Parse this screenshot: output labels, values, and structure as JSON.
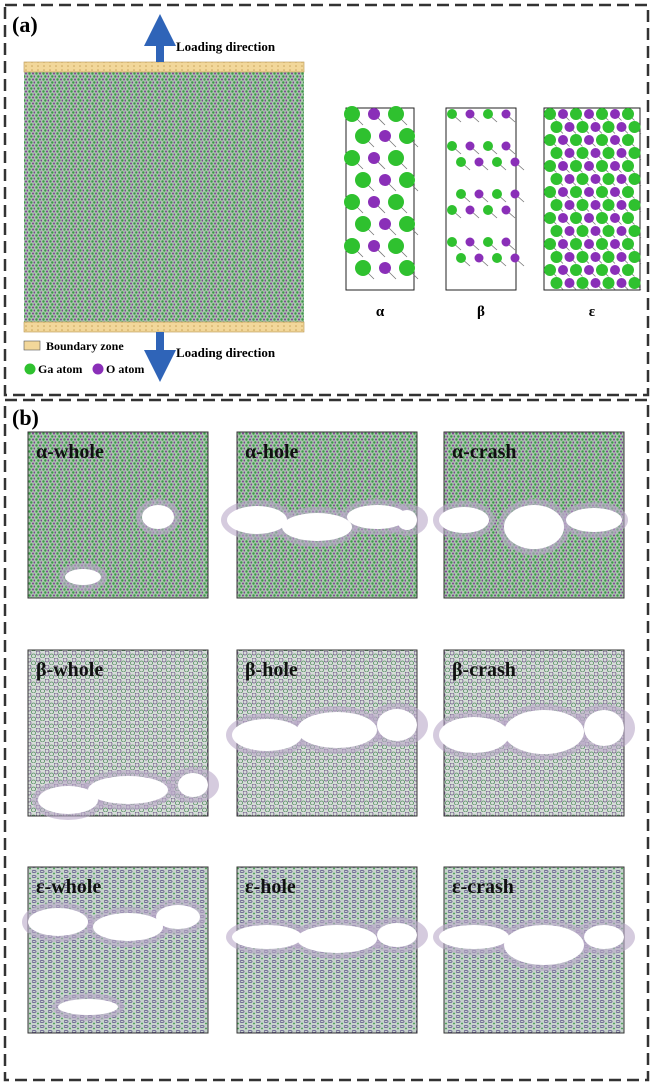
{
  "panel_a": {
    "label": "(a)",
    "loading_direction_top": "Loading direction",
    "loading_direction_bottom": "Loading direction",
    "legend": {
      "boundary_zone": "Boundary zone",
      "ga_atom": "Ga atom",
      "o_atom": "O atom"
    },
    "phases": [
      "α",
      "β",
      "ε"
    ]
  },
  "panel_b": {
    "label": "(b)",
    "panels": [
      "α-whole",
      "α-hole",
      "α-crash",
      "β-whole",
      "β-hole",
      "β-crash",
      "ε-whole",
      "ε-hole",
      "ε-crash"
    ]
  }
}
